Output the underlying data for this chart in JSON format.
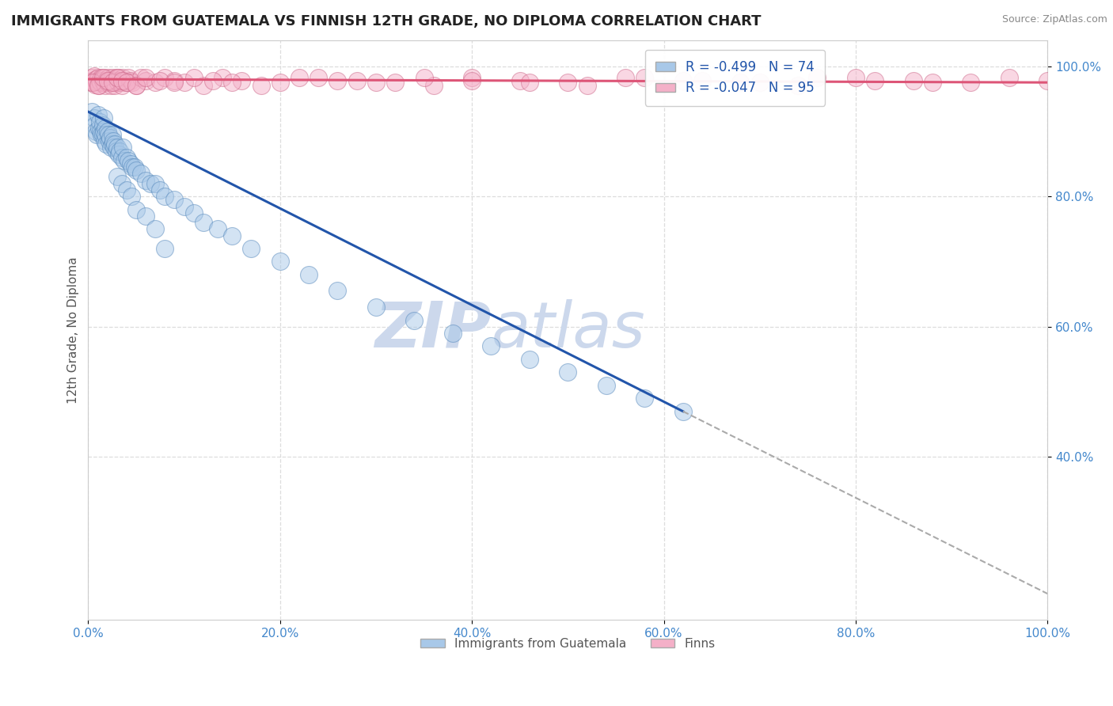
{
  "title": "IMMIGRANTS FROM GUATEMALA VS FINNISH 12TH GRADE, NO DIPLOMA CORRELATION CHART",
  "source_text": "Source: ZipAtlas.com",
  "ylabel": "12th Grade, No Diploma",
  "xlim": [
    0.0,
    1.0
  ],
  "ylim": [
    0.15,
    1.04
  ],
  "xtick_positions": [
    0.0,
    0.2,
    0.4,
    0.6,
    0.8,
    1.0
  ],
  "xtick_labels": [
    "0.0%",
    "20.0%",
    "40.0%",
    "60.0%",
    "80.0%",
    "100.0%"
  ],
  "ytick_positions": [
    0.4,
    0.6,
    0.8,
    1.0
  ],
  "ytick_labels": [
    "40.0%",
    "60.0%",
    "80.0%",
    "100.0%"
  ],
  "legend_r_items": [
    {
      "label_r": "R = ",
      "r_val": "-0.499",
      "label_n": "  N = ",
      "n_val": "74",
      "color": "#aac8e8"
    },
    {
      "label_r": "R = ",
      "r_val": "-0.047",
      "label_n": "  N = ",
      "n_val": "95",
      "color": "#f4b0c0"
    }
  ],
  "blue_scatter_color": "#a8c8e8",
  "blue_edge_color": "#5588bb",
  "pink_scatter_color": "#f4b0c8",
  "pink_edge_color": "#cc6688",
  "blue_line_color": "#2255aa",
  "pink_line_color": "#dd5577",
  "dashed_line_color": "#aaaaaa",
  "watermark_zip": "ZIP",
  "watermark_atlas": "atlas",
  "watermark_color": "#ccd8ec",
  "title_color": "#222222",
  "title_fontsize": 13,
  "tick_label_color": "#4488cc",
  "grid_color": "#dddddd",
  "background_color": "#ffffff",
  "blue_scatter_x": [
    0.004,
    0.006,
    0.007,
    0.008,
    0.009,
    0.01,
    0.011,
    0.012,
    0.013,
    0.014,
    0.015,
    0.015,
    0.016,
    0.016,
    0.017,
    0.018,
    0.018,
    0.019,
    0.02,
    0.021,
    0.022,
    0.023,
    0.024,
    0.025,
    0.025,
    0.026,
    0.027,
    0.028,
    0.029,
    0.03,
    0.032,
    0.033,
    0.035,
    0.036,
    0.038,
    0.04,
    0.042,
    0.044,
    0.046,
    0.048,
    0.05,
    0.055,
    0.06,
    0.065,
    0.07,
    0.075,
    0.08,
    0.09,
    0.1,
    0.11,
    0.12,
    0.135,
    0.15,
    0.17,
    0.2,
    0.23,
    0.26,
    0.3,
    0.34,
    0.38,
    0.42,
    0.46,
    0.5,
    0.54,
    0.58,
    0.62,
    0.03,
    0.035,
    0.04,
    0.045,
    0.05,
    0.06,
    0.07,
    0.08
  ],
  "blue_scatter_y": [
    0.93,
    0.92,
    0.91,
    0.9,
    0.895,
    0.925,
    0.905,
    0.915,
    0.9,
    0.895,
    0.91,
    0.895,
    0.9,
    0.92,
    0.885,
    0.905,
    0.895,
    0.88,
    0.9,
    0.895,
    0.885,
    0.89,
    0.875,
    0.895,
    0.88,
    0.885,
    0.875,
    0.88,
    0.87,
    0.875,
    0.865,
    0.87,
    0.86,
    0.875,
    0.855,
    0.86,
    0.855,
    0.85,
    0.845,
    0.845,
    0.84,
    0.835,
    0.825,
    0.82,
    0.82,
    0.81,
    0.8,
    0.795,
    0.785,
    0.775,
    0.76,
    0.75,
    0.74,
    0.72,
    0.7,
    0.68,
    0.655,
    0.63,
    0.61,
    0.59,
    0.57,
    0.55,
    0.53,
    0.51,
    0.49,
    0.47,
    0.83,
    0.82,
    0.81,
    0.8,
    0.78,
    0.77,
    0.75,
    0.72
  ],
  "pink_scatter_x": [
    0.003,
    0.004,
    0.005,
    0.006,
    0.007,
    0.008,
    0.009,
    0.01,
    0.011,
    0.012,
    0.013,
    0.014,
    0.015,
    0.016,
    0.017,
    0.018,
    0.019,
    0.02,
    0.021,
    0.022,
    0.023,
    0.024,
    0.025,
    0.026,
    0.027,
    0.028,
    0.029,
    0.03,
    0.031,
    0.032,
    0.033,
    0.034,
    0.035,
    0.036,
    0.038,
    0.04,
    0.042,
    0.044,
    0.046,
    0.05,
    0.055,
    0.06,
    0.07,
    0.08,
    0.09,
    0.1,
    0.12,
    0.14,
    0.16,
    0.2,
    0.24,
    0.28,
    0.32,
    0.36,
    0.4,
    0.45,
    0.5,
    0.56,
    0.62,
    0.68,
    0.74,
    0.8,
    0.86,
    0.92,
    0.96,
    1.0,
    0.005,
    0.01,
    0.015,
    0.02,
    0.025,
    0.03,
    0.035,
    0.04,
    0.05,
    0.06,
    0.075,
    0.09,
    0.11,
    0.13,
    0.15,
    0.18,
    0.22,
    0.26,
    0.3,
    0.35,
    0.4,
    0.46,
    0.52,
    0.58,
    0.64,
    0.7,
    0.76,
    0.82,
    0.88
  ],
  "pink_scatter_y": [
    0.975,
    0.982,
    0.978,
    0.985,
    0.972,
    0.98,
    0.976,
    0.983,
    0.97,
    0.978,
    0.975,
    0.982,
    0.978,
    0.975,
    0.983,
    0.97,
    0.978,
    0.975,
    0.982,
    0.978,
    0.975,
    0.97,
    0.983,
    0.978,
    0.975,
    0.97,
    0.983,
    0.978,
    0.975,
    0.982,
    0.978,
    0.975,
    0.97,
    0.983,
    0.978,
    0.975,
    0.982,
    0.978,
    0.975,
    0.97,
    0.983,
    0.978,
    0.975,
    0.982,
    0.978,
    0.975,
    0.97,
    0.983,
    0.978,
    0.975,
    0.982,
    0.978,
    0.975,
    0.97,
    0.983,
    0.978,
    0.975,
    0.982,
    0.978,
    0.975,
    0.97,
    0.983,
    0.978,
    0.975,
    0.982,
    0.978,
    0.975,
    0.97,
    0.983,
    0.978,
    0.975,
    0.982,
    0.978,
    0.975,
    0.97,
    0.983,
    0.978,
    0.975,
    0.982,
    0.978,
    0.975,
    0.97,
    0.983,
    0.978,
    0.975,
    0.982,
    0.978,
    0.975,
    0.97,
    0.983,
    0.978,
    0.975,
    0.982,
    0.978,
    0.975
  ],
  "blue_trend_x": [
    0.0,
    0.62
  ],
  "blue_trend_y": [
    0.93,
    0.47
  ],
  "pink_trend_x": [
    0.0,
    1.0
  ],
  "pink_trend_y": [
    0.98,
    0.975
  ],
  "dashed_trend_x": [
    0.62,
    1.0
  ],
  "dashed_trend_y": [
    0.47,
    0.19
  ]
}
